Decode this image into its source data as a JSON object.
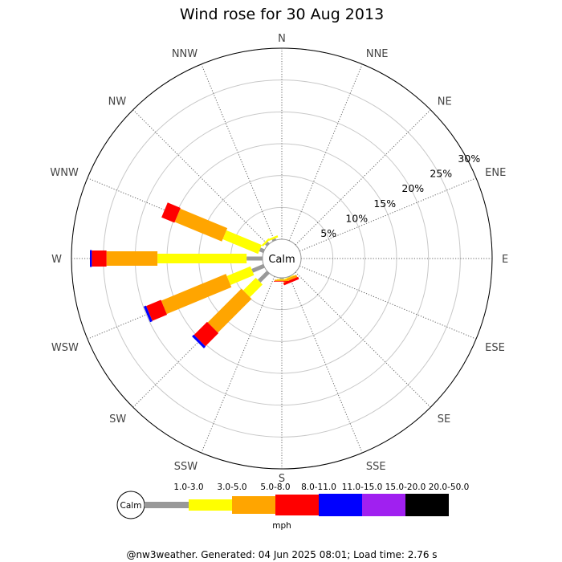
{
  "chart_data": {
    "type": "wind-rose",
    "title": "Wind rose for 30 Aug 2013",
    "center_label": "Calm",
    "directions": [
      "N",
      "NNE",
      "NE",
      "ENE",
      "E",
      "ESE",
      "SE",
      "SSE",
      "S",
      "SSW",
      "SW",
      "WSW",
      "W",
      "WNW",
      "NW",
      "NNW"
    ],
    "ring_labels": [
      "5%",
      "10%",
      "15%",
      "20%",
      "25%",
      "30%"
    ],
    "ring_values": [
      5,
      10,
      15,
      20,
      25,
      30
    ],
    "r_max": 30,
    "speed_bins": [
      {
        "label": "1.0-3.0",
        "color": "#999999"
      },
      {
        "label": "3.0-5.0",
        "color": "#ffff00"
      },
      {
        "label": "5.0-8.0",
        "color": "#ffa500"
      },
      {
        "label": "8.0-11.0",
        "color": "#ff0000"
      },
      {
        "label": "11.0-15.0",
        "color": "#0000ff"
      },
      {
        "label": "15.0-20.0",
        "color": "#a020f0"
      },
      {
        "label": "20.0-50.0",
        "color": "#000000"
      }
    ],
    "frequencies": {
      "SSE": [
        0.1,
        0.1,
        0.4,
        0.4,
        0,
        0,
        0
      ],
      "S": [
        0.2,
        0.1,
        0.2,
        0.1,
        0,
        0,
        0
      ],
      "SW": [
        2.0,
        2.8,
        7.5,
        2.9,
        0.4,
        0,
        0
      ],
      "WSW": [
        2.0,
        4.0,
        11.0,
        2.5,
        0.4,
        0,
        0
      ],
      "W": [
        2.5,
        14.0,
        8.0,
        2.3,
        0.3,
        0,
        0
      ],
      "WNW": [
        0.7,
        6.0,
        8.0,
        2.2,
        0,
        0,
        0
      ],
      "NW": [
        0.4,
        0.3,
        0,
        0,
        0,
        0,
        0
      ],
      "NNW": [
        0.3,
        0.3,
        0,
        0,
        0,
        0,
        0
      ]
    },
    "unit_label": "mph",
    "grid": true
  },
  "footer": "@nw3weather. Generated: 04 Jun 2025 08:01; Load time: 2.76 s"
}
